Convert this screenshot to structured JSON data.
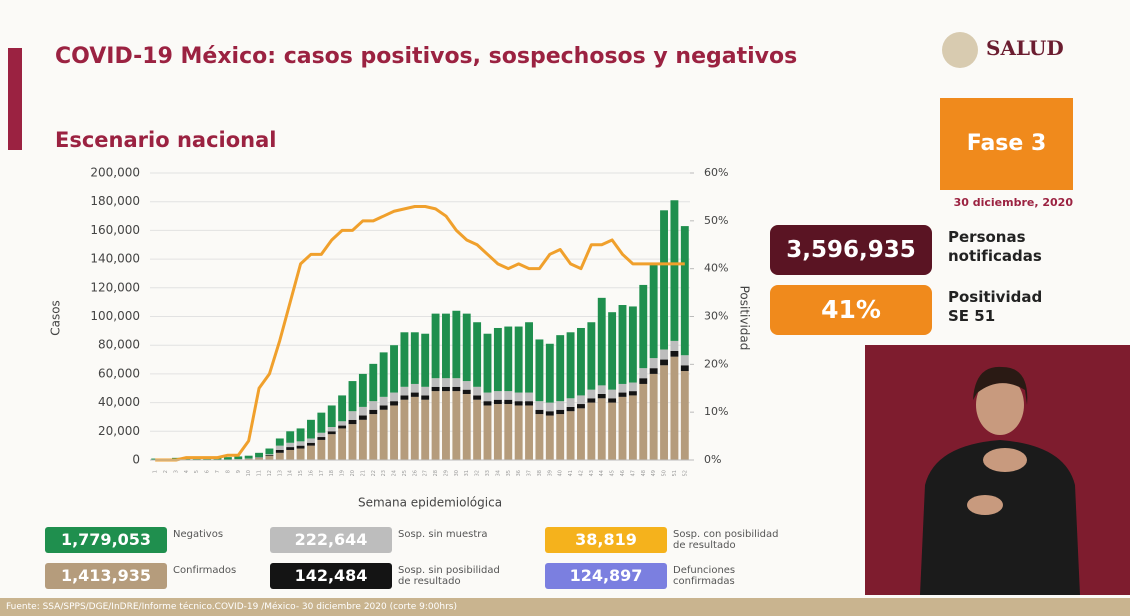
{
  "header": {
    "title": "COVID-19 México: casos positivos, sospechosos y negativos",
    "subtitle": "Escenario nacional",
    "logo": "SALUD"
  },
  "panel": {
    "phase": "Fase 3",
    "date": "30 diciembre, 2020",
    "notified_value": "3,596,935",
    "notified_label": "Personas notificadas",
    "positivity_value": "41%",
    "positivity_label": "Positividad SE 51"
  },
  "footer": "Fuente: SSA/SPPS/DGE/InDRE/Informe técnico.COVID-19 /México- 30 diciembre 2020 (corte 9:00hrs)",
  "chart_data": {
    "type": "bar",
    "stacked": true,
    "x_label": "Semana epidemiológica",
    "y_label": "Casos",
    "y2_label": "Positividad",
    "categories": [
      "1",
      "2",
      "3",
      "4",
      "5",
      "6",
      "7",
      "8",
      "9",
      "10",
      "11",
      "12",
      "13",
      "14",
      "15",
      "16",
      "17",
      "18",
      "19",
      "20",
      "21",
      "22",
      "23",
      "24",
      "25",
      "26",
      "27",
      "28",
      "29",
      "30",
      "31",
      "32",
      "33",
      "34",
      "35",
      "36",
      "37",
      "38",
      "39",
      "40",
      "41",
      "42",
      "43",
      "44",
      "45",
      "46",
      "47",
      "48",
      "49",
      "50",
      "51",
      "52"
    ],
    "ylim": [
      0,
      200000
    ],
    "yticks": [
      {
        "value": 0,
        "label": "0"
      },
      {
        "value": 20000,
        "label": "20,000"
      },
      {
        "value": 40000,
        "label": "40,000"
      },
      {
        "value": 60000,
        "label": "60,000"
      },
      {
        "value": 80000,
        "label": "80,000"
      },
      {
        "value": 100000,
        "label": "100,000"
      },
      {
        "value": 120000,
        "label": "120,000"
      },
      {
        "value": 140000,
        "label": "140,000"
      },
      {
        "value": 160000,
        "label": "160,000"
      },
      {
        "value": 180000,
        "label": "180,000"
      },
      {
        "value": 200000,
        "label": "200,000"
      }
    ],
    "y2lim": [
      0,
      60
    ],
    "y2ticks": [
      {
        "value": 0,
        "label": "0%"
      },
      {
        "value": 10,
        "label": "10%"
      },
      {
        "value": 20,
        "label": "20%"
      },
      {
        "value": 30,
        "label": "30%"
      },
      {
        "value": 40,
        "label": "40%"
      },
      {
        "value": 50,
        "label": "50%"
      },
      {
        "value": 60,
        "label": "60%"
      }
    ],
    "grid": true,
    "series": [
      {
        "name": "Confirmados",
        "color": "#b59c7c",
        "total": "1,413,935",
        "values": [
          100,
          100,
          100,
          100,
          100,
          200,
          200,
          300,
          500,
          800,
          1500,
          3000,
          5000,
          7000,
          8000,
          10000,
          14000,
          18000,
          22000,
          25000,
          28000,
          32000,
          35000,
          38000,
          42000,
          44000,
          42000,
          48000,
          48000,
          48000,
          46000,
          42000,
          38000,
          39000,
          39000,
          38000,
          38000,
          32000,
          31000,
          32000,
          34000,
          36000,
          40000,
          43000,
          40000,
          44000,
          45000,
          53000,
          60000,
          66000,
          72000,
          62000
        ]
      },
      {
        "name": "Sosp. sin posibilidad de resultado",
        "color": "#141414",
        "total": "142,484",
        "values": [
          0,
          0,
          0,
          0,
          0,
          0,
          0,
          0,
          0,
          0,
          200,
          500,
          2000,
          2000,
          2000,
          2000,
          2000,
          2000,
          2000,
          3000,
          3000,
          3000,
          3000,
          3000,
          3000,
          3000,
          3000,
          3000,
          3000,
          3000,
          3000,
          3000,
          3000,
          3000,
          3000,
          3000,
          3000,
          3000,
          3000,
          3000,
          3000,
          3000,
          3000,
          3000,
          3000,
          3000,
          3000,
          4000,
          4000,
          4000,
          4000,
          4000
        ]
      },
      {
        "name": "Sosp. sin muestra",
        "color": "#bdbdbd",
        "total": "222,644",
        "values": [
          0,
          0,
          0,
          0,
          0,
          0,
          0,
          0,
          100,
          200,
          300,
          500,
          3000,
          3000,
          3000,
          3000,
          3000,
          3000,
          3000,
          6000,
          6000,
          6000,
          6000,
          6000,
          6000,
          6000,
          6000,
          6000,
          6000,
          6000,
          6000,
          6000,
          6000,
          6000,
          6000,
          6000,
          6000,
          6000,
          6000,
          6000,
          6000,
          6000,
          6000,
          6000,
          6000,
          6000,
          6000,
          7000,
          7000,
          7000,
          7000,
          7000
        ]
      },
      {
        "name": "Negativos",
        "color": "#1f8f4e",
        "total": "1,779,053",
        "values": [
          900,
          900,
          1400,
          1900,
          1900,
          1800,
          1800,
          1700,
          1900,
          2000,
          3000,
          4000,
          5000,
          8000,
          9000,
          13000,
          14000,
          15000,
          18000,
          21000,
          23000,
          26000,
          31000,
          33000,
          38000,
          36000,
          37000,
          45000,
          45000,
          47000,
          47000,
          45000,
          41000,
          44000,
          45000,
          46000,
          49000,
          43000,
          41000,
          46000,
          46000,
          47000,
          47000,
          61000,
          54000,
          55000,
          53000,
          58000,
          66000,
          97000,
          98000,
          90000
        ]
      },
      {
        "name": "Positividad",
        "type": "line",
        "axis": "y2",
        "color": "#f0a02c",
        "values": [
          0,
          0,
          0,
          0.5,
          0.5,
          0.5,
          0.5,
          1,
          1,
          4,
          15,
          18,
          25,
          33,
          41,
          43,
          43,
          46,
          48,
          48,
          50,
          50,
          51,
          52,
          52.5,
          53,
          53,
          52.5,
          51,
          48,
          46,
          45,
          43,
          41,
          40,
          41,
          40,
          40,
          43,
          44,
          41,
          40,
          45,
          45,
          46,
          43,
          41,
          41,
          41,
          41,
          41,
          41
        ]
      }
    ],
    "other_totals": [
      {
        "name": "Sosp. con posibilidad de resultado",
        "color": "#f5b21c",
        "total": "38,819"
      },
      {
        "name": "Defunciones confirmadas",
        "color": "#7b7fe0",
        "total": "124,897"
      }
    ]
  }
}
